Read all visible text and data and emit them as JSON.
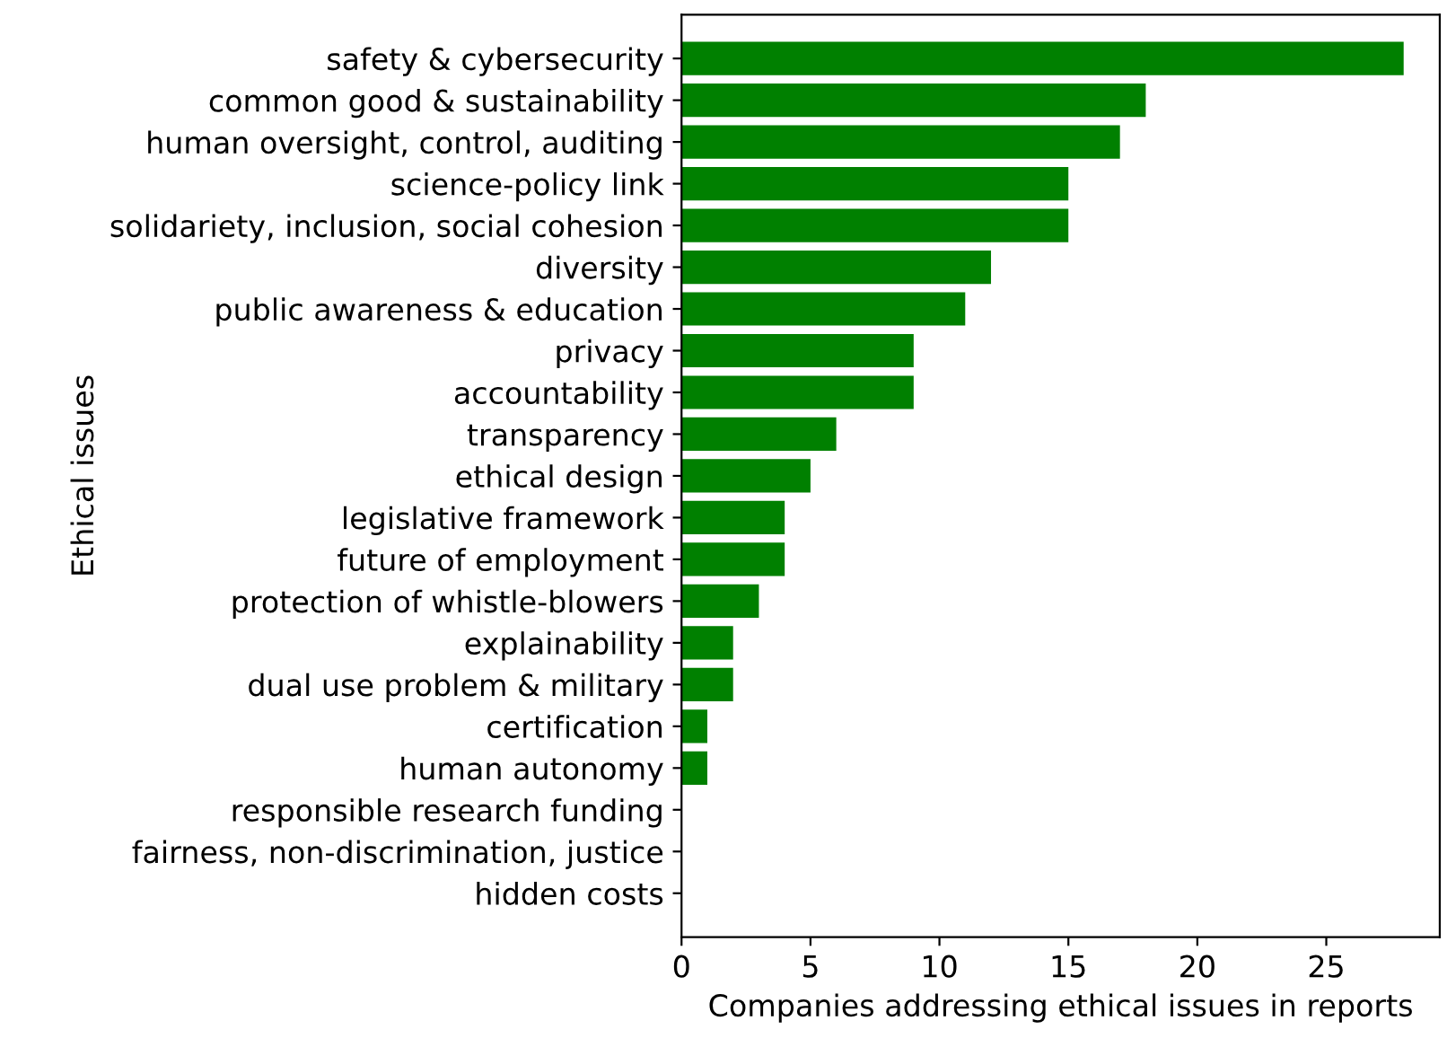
{
  "chart_data": {
    "type": "bar",
    "orientation": "horizontal",
    "xlabel": "Companies addressing ethical issues in reports",
    "ylabel": "Ethical issues",
    "categories": [
      "safety & cybersecurity",
      "common good & sustainability",
      "human oversight, control, auditing",
      "science-policy link",
      "solidariety, inclusion, social cohesion",
      "diversity",
      "public awareness & education",
      "privacy",
      "accountability",
      "transparency",
      "ethical design",
      "legislative framework",
      "future of employment",
      "protection of whistle-blowers",
      "explainability",
      "dual use problem & military",
      "certification",
      "human autonomy",
      "responsible research funding",
      "fairness, non-discrimination, justice",
      "hidden costs"
    ],
    "values": [
      28,
      18,
      17,
      15,
      15,
      12,
      11,
      9,
      9,
      6,
      5,
      4,
      4,
      3,
      2,
      2,
      1,
      1,
      0,
      0,
      0
    ],
    "color": "#008000",
    "xlim": [
      0,
      29.4
    ],
    "xticks": [
      0,
      5,
      10,
      15,
      20,
      25
    ],
    "grid": false,
    "legend": false
  }
}
